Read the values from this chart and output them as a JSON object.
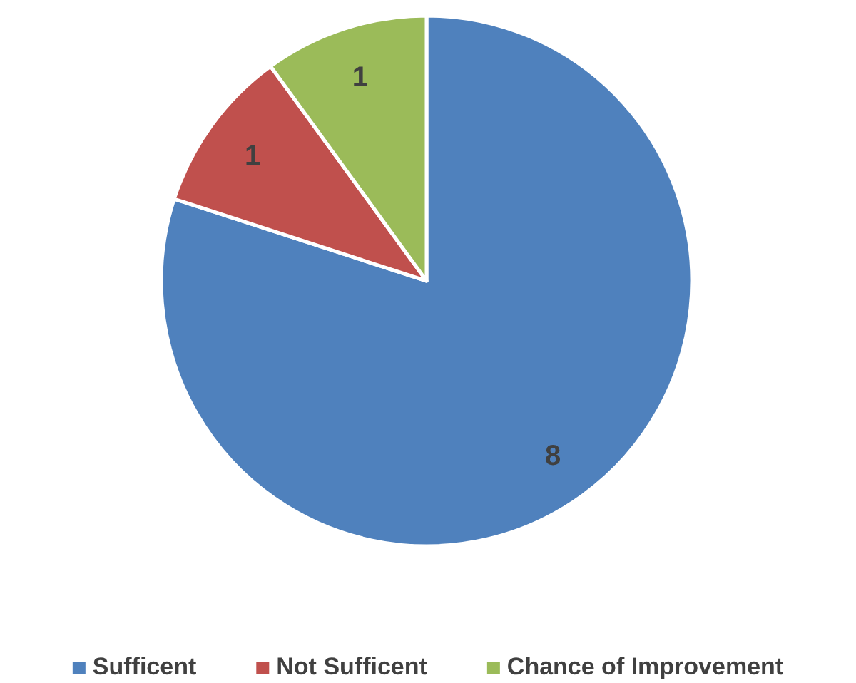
{
  "chart_data": {
    "type": "pie",
    "categories": [
      "Sufficent",
      "Not Sufficent",
      "Chance of Improvement"
    ],
    "values": [
      8,
      1,
      1
    ],
    "colors": [
      "#4f81bd",
      "#c0504d",
      "#9bbb59"
    ],
    "data_labels": true,
    "legend": "bottom"
  }
}
